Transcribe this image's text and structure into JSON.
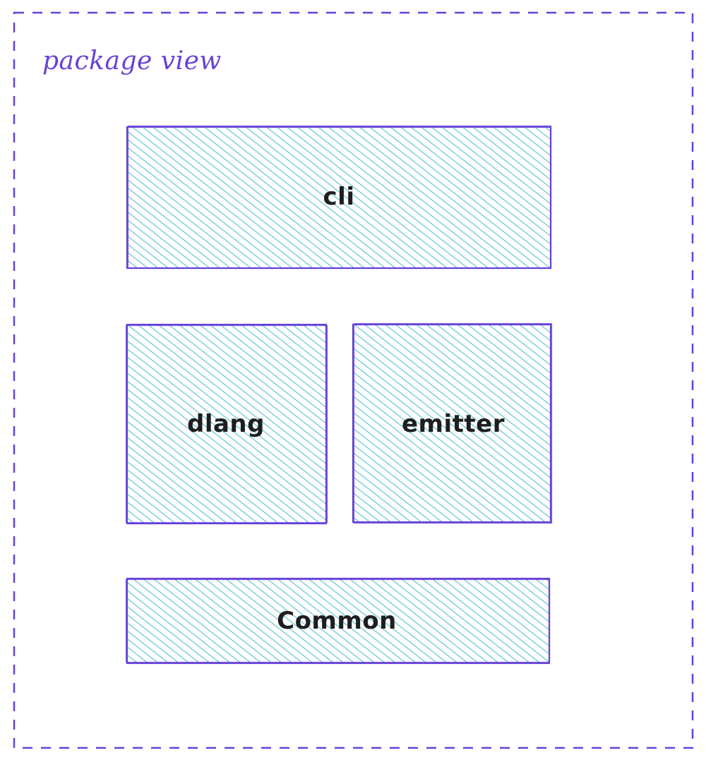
{
  "colors": {
    "frame_stroke": "#6741d9",
    "box_stroke": "#6741d9",
    "box_fill": "#15aabf",
    "label_text": "#1e1e1e",
    "title_text": "#6741d9",
    "background": "#ffffff"
  },
  "frame": {
    "title": "package view",
    "border_style": "dashed"
  },
  "boxes": [
    {
      "id": "cli",
      "label": "cli",
      "fill_style": "hachure"
    },
    {
      "id": "dlang",
      "label": "dlang",
      "fill_style": "hachure"
    },
    {
      "id": "emitter",
      "label": "emitter",
      "fill_style": "hachure"
    },
    {
      "id": "common",
      "label": "Common",
      "fill_style": "hachure"
    }
  ]
}
